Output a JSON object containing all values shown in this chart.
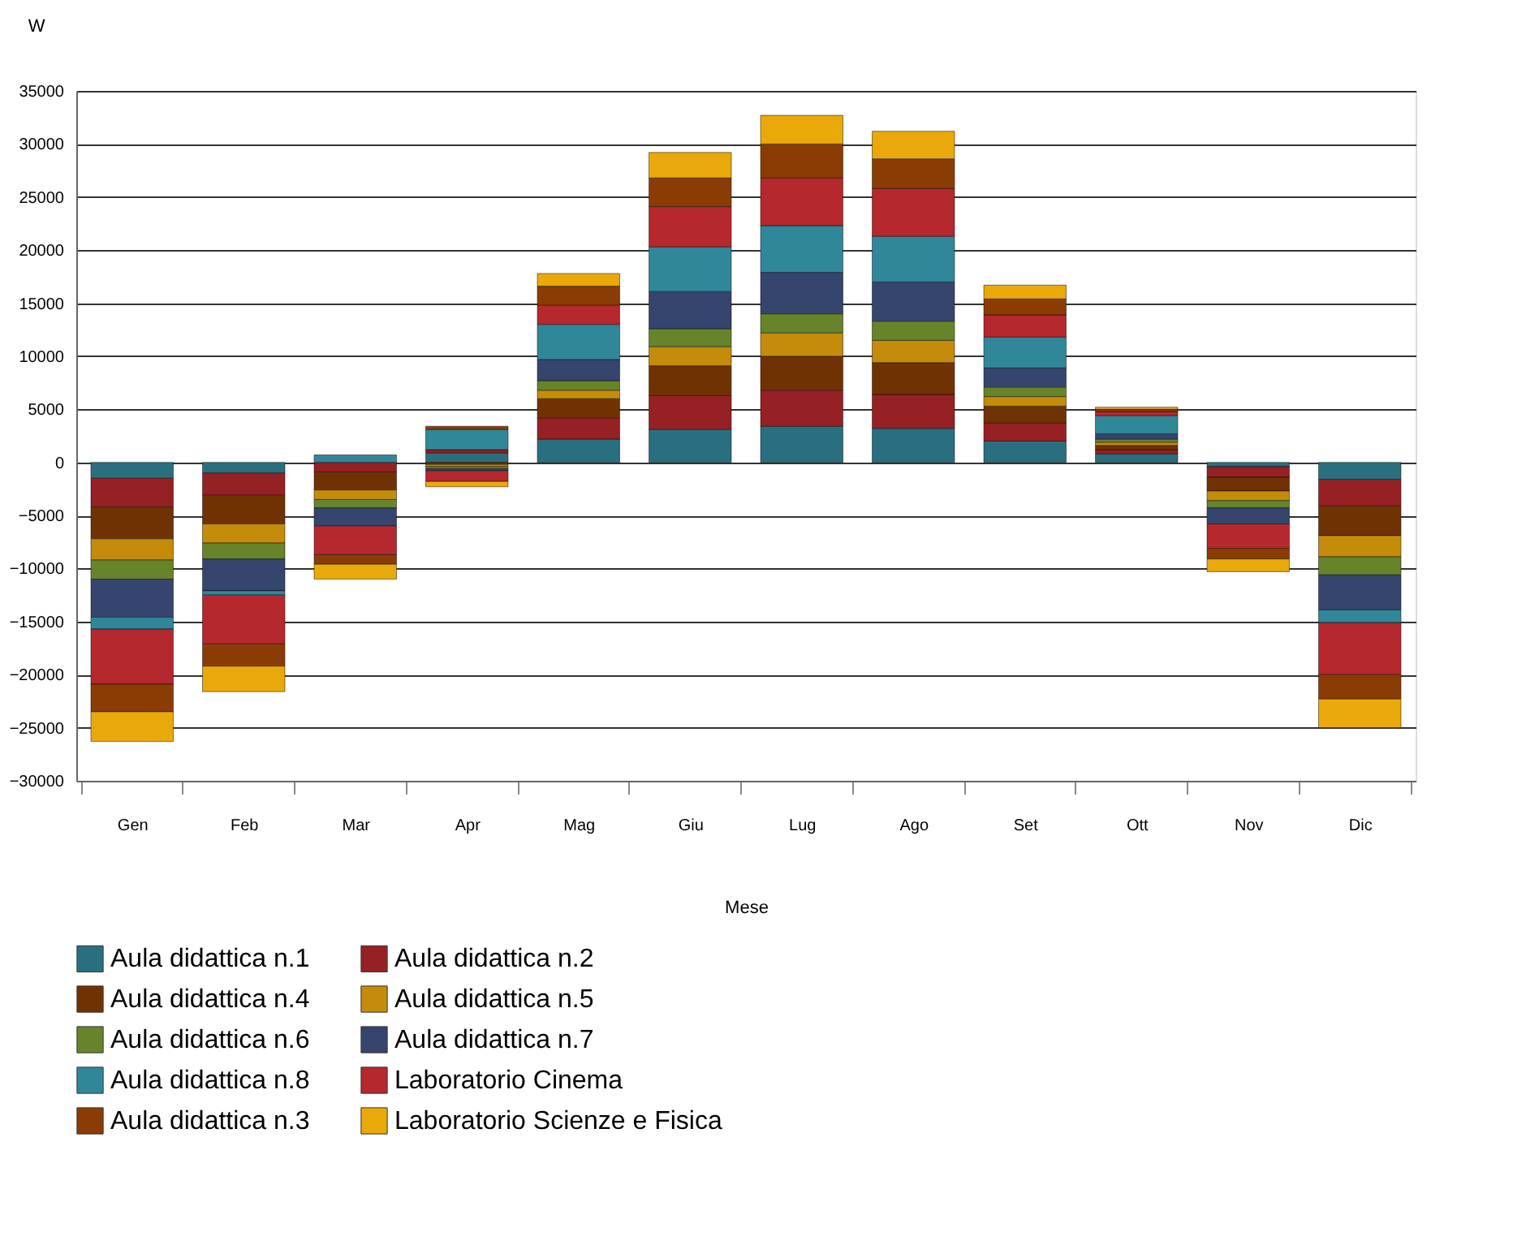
{
  "chart_data": {
    "type": "bar",
    "stacked": true,
    "ylabel": "W",
    "xlabel": "Mese",
    "categories": [
      "Gen",
      "Feb",
      "Mar",
      "Apr",
      "Mag",
      "Giu",
      "Lug",
      "Ago",
      "Set",
      "Ott",
      "Nov",
      "Dic"
    ],
    "ylim": [
      -30000,
      35000
    ],
    "yticks": [
      -30000,
      -25000,
      -20000,
      -15000,
      -10000,
      -5000,
      0,
      5000,
      10000,
      15000,
      20000,
      25000,
      30000,
      35000
    ],
    "grid": "y",
    "legend": "bottom",
    "series": [
      {
        "name": "Aula didattica n.1",
        "color": "#2a6f7f",
        "values": [
          -1500,
          -1000,
          null,
          900,
          2200,
          3100,
          3400,
          3200,
          2000,
          800,
          -400,
          -1600
        ]
      },
      {
        "name": "Aula didattica n.2",
        "color": "#952124",
        "values": [
          -2700,
          -2100,
          -900,
          300,
          2000,
          3200,
          3400,
          3200,
          1700,
          400,
          -1000,
          -2500
        ]
      },
      {
        "name": "Aula didattica n.4",
        "color": "#713203",
        "values": [
          -3000,
          -2700,
          -1700,
          -200,
          1800,
          2800,
          3200,
          3000,
          1600,
          400,
          -1300,
          -2800
        ]
      },
      {
        "name": "Aula didattica n.5",
        "color": "#c48c0a",
        "values": [
          -2000,
          -1800,
          -900,
          -200,
          800,
          1800,
          2200,
          2100,
          900,
          300,
          -900,
          -2000
        ]
      },
      {
        "name": "Aula didattica n.6",
        "color": "#67842b",
        "values": [
          -1800,
          -1500,
          -800,
          -200,
          900,
          1700,
          1800,
          1800,
          900,
          300,
          -700,
          -1700
        ]
      },
      {
        "name": "Aula didattica n.7",
        "color": "#35456e",
        "values": [
          -3600,
          -3000,
          -1700,
          -200,
          2000,
          3500,
          3900,
          3700,
          1800,
          500,
          -1500,
          -3300
        ]
      },
      {
        "name": "Aula didattica n.8",
        "color": "#31879a",
        "values": [
          -1100,
          -400,
          700,
          1900,
          3300,
          4200,
          4400,
          4300,
          2900,
          1700,
          null,
          -1200
        ]
      },
      {
        "name": "Laboratorio Cinema",
        "color": "#b5282e",
        "values": [
          -5200,
          -4600,
          -2700,
          -1000,
          1800,
          3800,
          4500,
          4500,
          2100,
          400,
          -2300,
          -4900
        ]
      },
      {
        "name": "Aula didattica n.3",
        "color": "#8b3c04",
        "values": [
          -2600,
          -2100,
          -900,
          300,
          1800,
          2700,
          3200,
          2800,
          1500,
          200,
          -1000,
          -2300
        ]
      },
      {
        "name": "Laboratorio Scienze e Fisica",
        "color": "#eaa90a",
        "values": [
          -2800,
          -2400,
          -1400,
          -500,
          1200,
          2400,
          2700,
          2600,
          1300,
          200,
          -1200,
          -2700
        ]
      }
    ]
  }
}
